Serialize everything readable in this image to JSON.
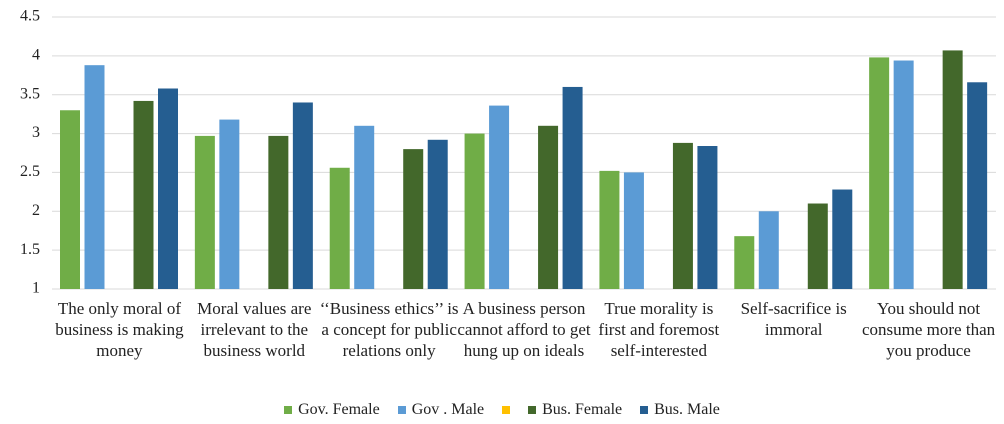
{
  "chart_data": {
    "type": "bar",
    "categories": [
      "The only moral of business is making money",
      "Moral values are irrelevant to the business world",
      "‘‘Business ethics’’ is a concept for public relations only",
      "A business person cannot afford to get hung up on ideals",
      "True morality is first and foremost self-interested",
      "Self-sacrifice is immoral",
      "You should not consume more than you produce"
    ],
    "series": [
      {
        "name": "Gov. Female",
        "color": "#70ad47",
        "values": [
          3.3,
          2.97,
          2.56,
          3.0,
          2.52,
          1.68,
          3.98
        ]
      },
      {
        "name": "Gov . Male",
        "color": "#5b9bd5",
        "values": [
          3.88,
          3.18,
          3.1,
          3.36,
          2.5,
          2.0,
          3.94
        ]
      },
      {
        "name": null,
        "color": "#ffc000",
        "values": [
          null,
          null,
          null,
          null,
          null,
          null,
          null
        ]
      },
      {
        "name": "Bus. Female",
        "color": "#43682b",
        "values": [
          3.42,
          2.97,
          2.8,
          3.1,
          2.88,
          2.1,
          4.07
        ]
      },
      {
        "name": "Bus. Male",
        "color": "#255e91",
        "values": [
          3.58,
          3.4,
          2.92,
          3.6,
          2.84,
          2.28,
          3.66
        ]
      }
    ],
    "ylim": [
      1,
      4.5
    ],
    "yticks": [
      1,
      1.5,
      2,
      2.5,
      3,
      3.5,
      4,
      4.5
    ],
    "grid": true,
    "legend": "bottom"
  }
}
